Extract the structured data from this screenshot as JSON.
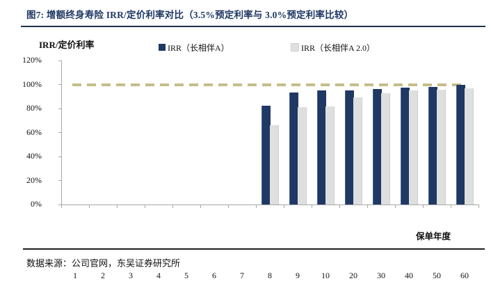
{
  "figure": {
    "title": "图7:  增额终身寿险 IRR/定价利率对比（3.5%预定利率与 3.0%预定利率比较）",
    "source": "数据来源：公司官网，东吴证券研究所"
  },
  "chart_data": {
    "type": "bar",
    "title": "增额终身寿险 IRR/定价利率对比（3.5%预定利率与 3.0%预定利率比较）",
    "y_axis_title": "IRR/定价利率",
    "x_axis_label": "保单年度",
    "categories": [
      "1",
      "2",
      "3",
      "4",
      "5",
      "6",
      "7",
      "8",
      "9",
      "10",
      "20",
      "30",
      "40",
      "50",
      "60"
    ],
    "series": [
      {
        "name": "IRR（长相伴A）",
        "color": "#1f3864",
        "values": [
          0,
          0,
          0,
          0,
          0,
          0,
          0,
          82.6,
          93.4,
          94.8,
          95.3,
          96.5,
          97.3,
          98.1,
          99.5
        ]
      },
      {
        "name": "IRR（长相伴A 2.0）",
        "color": "#dee0e0",
        "values": [
          0,
          0,
          0,
          0,
          0,
          0,
          0,
          65.9,
          81.0,
          82.0,
          89.5,
          93.0,
          95.0,
          95.9,
          96.7
        ]
      }
    ],
    "ylim": [
      0,
      120
    ],
    "ytick_step": 20,
    "ytick_labels": [
      "0%",
      "20%",
      "40%",
      "60%",
      "80%",
      "100%",
      "120%"
    ],
    "ytick_format": "percent",
    "grid": false,
    "legend_position": "top",
    "reference_line": {
      "value": 100,
      "style": "dashed",
      "color": "#c5bd8a"
    }
  },
  "colors": {
    "title": "#1f3864",
    "bar_primary": "#1f3864",
    "bar_secondary": "#dee0e0",
    "axis": "#a6a6a6",
    "reference_dash": "#c5bd8a"
  }
}
